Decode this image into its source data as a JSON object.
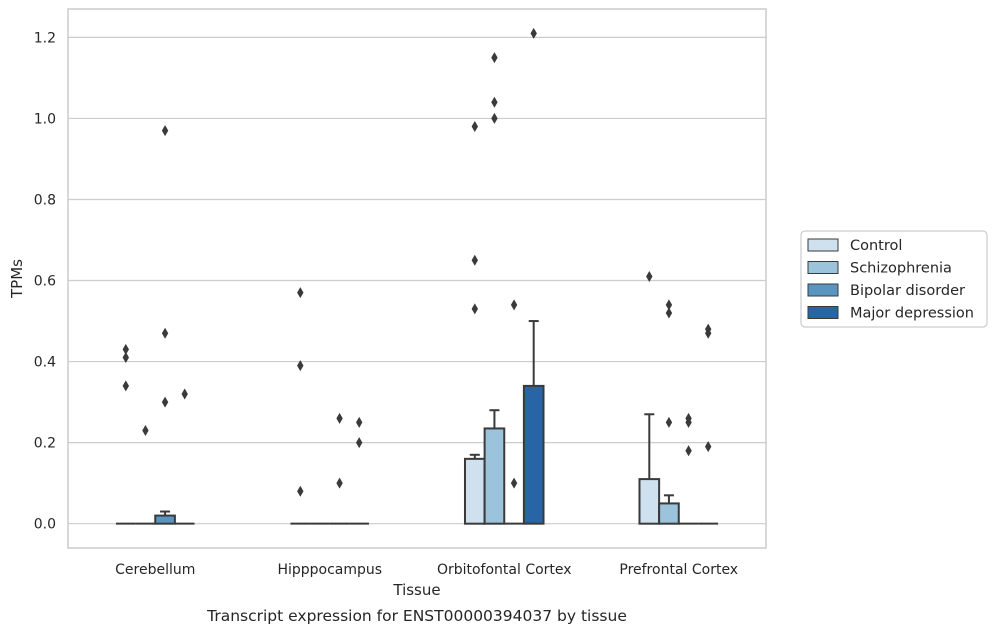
{
  "chart_data": {
    "type": "bar",
    "title": "",
    "caption": "Transcript expression for ENST00000394037 by tissue",
    "xlabel": "Tissue",
    "ylabel": "TPMs",
    "ylim": [
      -0.06,
      1.27
    ],
    "yticks": [
      "0.0",
      "0.2",
      "0.4",
      "0.6",
      "0.8",
      "1.0",
      "1.2"
    ],
    "grid": "horizontal",
    "legend_position": "right",
    "categories": [
      "Cerebellum",
      "Hipppocampus",
      "Orbitofontal Cortex",
      "Prefrontal Cortex"
    ],
    "series": [
      {
        "name": "Control",
        "color": "#cfe0ef",
        "values": [
          0.0,
          0.0,
          0.16,
          0.11
        ],
        "error_upper": [
          null,
          null,
          0.17,
          0.27
        ],
        "outliers": [
          [
            0.43,
            0.41,
            0.34
          ],
          [
            0.57,
            0.39,
            0.08
          ],
          [
            0.98,
            0.65,
            0.53
          ],
          [
            0.61
          ]
        ]
      },
      {
        "name": "Schizophrenia",
        "color": "#9cc3dc",
        "values": [
          0.0,
          0.0,
          0.235,
          0.05
        ],
        "error_upper": [
          null,
          null,
          0.28,
          0.07
        ],
        "outliers": [
          [
            0.23
          ],
          [],
          [
            1.15,
            1.04,
            1.0
          ],
          [
            0.54,
            0.52,
            0.25
          ]
        ]
      },
      {
        "name": "Bipolar disorder",
        "color": "#5a95c2",
        "values": [
          0.02,
          0.0,
          0.0,
          0.0
        ],
        "error_upper": [
          0.03,
          null,
          null,
          null
        ],
        "outliers": [
          [
            0.97,
            0.47,
            0.3
          ],
          [
            0.26,
            0.1
          ],
          [
            0.54,
            0.1
          ],
          [
            0.26,
            0.25,
            0.18
          ]
        ]
      },
      {
        "name": "Major depression",
        "color": "#2765a6",
        "values": [
          0.0,
          0.0,
          0.34,
          0.0
        ],
        "error_upper": [
          null,
          null,
          0.5,
          null
        ],
        "outliers": [
          [
            0.32
          ],
          [
            0.25,
            0.2
          ],
          [
            1.21
          ],
          [
            0.48,
            0.47,
            0.19
          ]
        ]
      }
    ]
  }
}
